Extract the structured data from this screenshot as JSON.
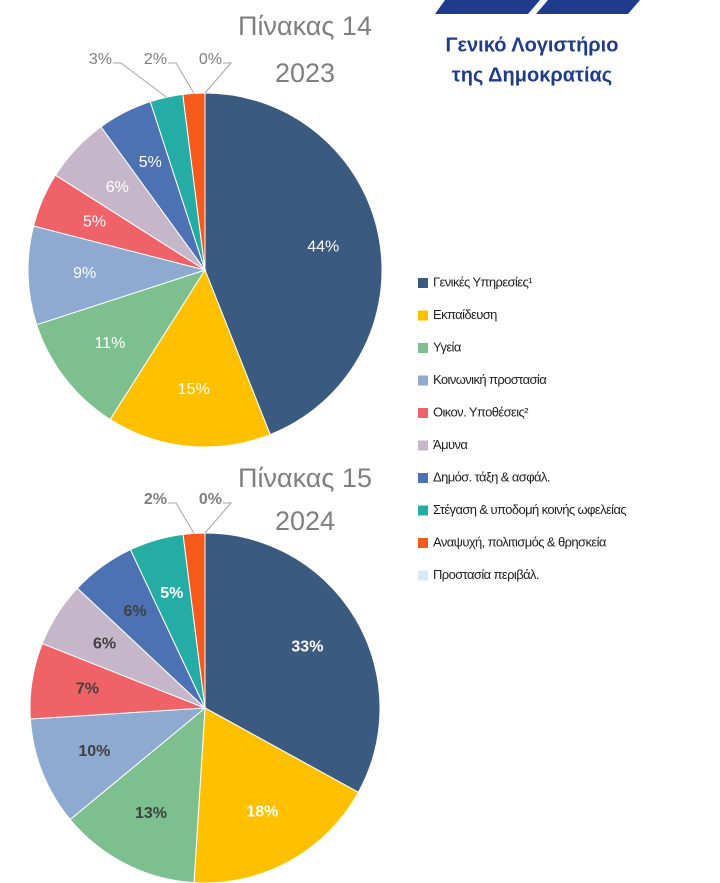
{
  "logo": {
    "line1": "Γενικό Λογιστήριο",
    "line2": "της Δημοκρατίας"
  },
  "legend": {
    "labels": [
      "Γενικές Υπηρεσίες¹",
      "Εκπαίδευση",
      "Υγεία",
      "Κοινωνική προστασία",
      "Οικον. Υποθέσεις²",
      "Άμυνα",
      "Δημόσ. τάξη & ασφάλ.",
      "Στέγαση & υποδομή κοινής ωφελείας",
      "Αναψυχή, πολιτισμός & θρησκεία",
      "Προστασία περιβάλ."
    ],
    "colors": [
      "#3a5a80",
      "#ffc000",
      "#7dbf8e",
      "#8eaad0",
      "#ef6368",
      "#c6b6c9",
      "#4d72b3",
      "#25ada5",
      "#f5591c",
      "#dde6f4"
    ]
  },
  "chart_data": [
    {
      "type": "pie",
      "title": "Πίνακας 14",
      "subtitle": "2023",
      "values": [
        44,
        15,
        11,
        9,
        5,
        6,
        5,
        3,
        2,
        0
      ],
      "value_labels": [
        "44%",
        "15%",
        "11%",
        "9%",
        "5%",
        "6%",
        "5%",
        "3%",
        "2%",
        "0%"
      ]
    },
    {
      "type": "pie",
      "title": "Πίνακας 15",
      "subtitle": "2024",
      "values": [
        33,
        18,
        13,
        10,
        7,
        6,
        6,
        5,
        2,
        0
      ],
      "value_labels": [
        "33%",
        "18%",
        "13%",
        "10%",
        "7%",
        "6%",
        "6%",
        "5%",
        "2%",
        "0%"
      ]
    }
  ]
}
